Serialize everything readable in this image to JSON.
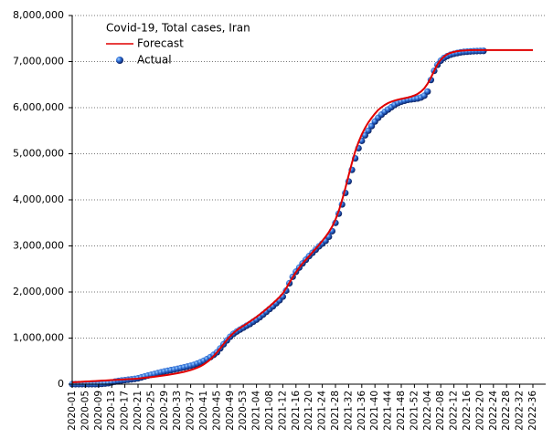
{
  "chart_data": {
    "type": "line",
    "title": "Covid-19, Total cases, Iran",
    "categories": [
      "2020-01",
      null,
      null,
      null,
      "2020-05",
      null,
      null,
      null,
      "2020-09",
      null,
      null,
      null,
      "2020-13",
      null,
      null,
      null,
      "2020-17",
      null,
      null,
      null,
      "2020-21",
      null,
      null,
      null,
      "2020-25",
      null,
      null,
      null,
      "2020-29",
      null,
      null,
      null,
      "2020-33",
      null,
      null,
      null,
      "2020-37",
      null,
      null,
      null,
      "2020-41",
      null,
      null,
      null,
      "2020-45",
      null,
      null,
      null,
      "2020-49",
      null,
      null,
      null,
      "2020-53",
      null,
      null,
      null,
      "2021-04",
      null,
      null,
      null,
      "2021-08",
      null,
      null,
      null,
      "2021-12",
      null,
      null,
      null,
      "2021-16",
      null,
      null,
      null,
      "2021-20",
      null,
      null,
      null,
      "2021-24",
      null,
      null,
      null,
      "2021-28",
      null,
      null,
      null,
      "2021-32",
      null,
      null,
      null,
      "2021-36",
      null,
      null,
      null,
      "2021-40",
      null,
      null,
      null,
      "2021-44",
      null,
      null,
      null,
      "2021-48",
      null,
      null,
      null,
      "2021-52",
      null,
      null,
      null,
      "2022-04",
      null,
      null,
      null,
      "2022-08",
      null,
      null,
      null,
      "2022-12",
      null,
      null,
      null,
      "2022-16",
      null,
      null,
      null,
      "2022-20",
      null,
      null,
      null,
      "2022-24",
      null,
      null,
      null,
      "2022-28",
      null,
      null,
      null,
      "2022-32",
      null,
      null,
      null,
      "2022-36"
    ],
    "series": [
      {
        "name": "Forecast",
        "color": "#e00000",
        "values": [
          40000,
          44000,
          48000,
          52000,
          56000,
          60000,
          64000,
          68000,
          72000,
          76000,
          80000,
          84000,
          88000,
          92000,
          96000,
          100000,
          104000,
          108000,
          112000,
          116000,
          122000,
          130000,
          138000,
          146000,
          154000,
          162000,
          170000,
          180000,
          190000,
          200000,
          212000,
          224000,
          238000,
          252000,
          268000,
          286000,
          306000,
          330000,
          358000,
          390000,
          430000,
          480000,
          540000,
          610000,
          690000,
          780000,
          870000,
          960000,
          1040000,
          1110000,
          1170000,
          1220000,
          1265000,
          1310000,
          1360000,
          1410000,
          1460000,
          1515000,
          1570000,
          1630000,
          1690000,
          1755000,
          1820000,
          1890000,
          1970000,
          2080000,
          2200000,
          2320000,
          2430000,
          2530000,
          2620000,
          2700000,
          2780000,
          2860000,
          2940000,
          3020000,
          3110000,
          3200000,
          3300000,
          3420000,
          3570000,
          3760000,
          3990000,
          4250000,
          4530000,
          4800000,
          5050000,
          5250000,
          5420000,
          5560000,
          5680000,
          5780000,
          5870000,
          5950000,
          6010000,
          6060000,
          6100000,
          6130000,
          6155000,
          6175000,
          6190000,
          6205000,
          6220000,
          6240000,
          6265000,
          6300000,
          6350000,
          6420000,
          6520000,
          6650000,
          6800000,
          6940000,
          7040000,
          7110000,
          7160000,
          7190000,
          7210000,
          7225000,
          7235000,
          7240000,
          7245000,
          7248000,
          7250000,
          7250000,
          7250000,
          7250000,
          7250000,
          7250000,
          7250000,
          7250000,
          7250000,
          7250000,
          7250000,
          7250000,
          7250000,
          7250000,
          7250000,
          7250000,
          7250000,
          7250000,
          7250000
        ]
      },
      {
        "name": "Actual",
        "color": "#1e50c8",
        "values": [
          0,
          0,
          0,
          0,
          0,
          0,
          0,
          0,
          1000,
          7000,
          14000,
          21000,
          38000,
          55000,
          71000,
          80000,
          88000,
          96000,
          104000,
          114000,
          126000,
          146000,
          167000,
          187000,
          204000,
          220000,
          240000,
          259000,
          276000,
          291000,
          304000,
          318000,
          333000,
          350000,
          365000,
          381000,
          400000,
          420000,
          446000,
          476000,
          509000,
          546000,
          588000,
          636000,
          692000,
          776000,
          866000,
          949000,
          1028000,
          1092000,
          1141000,
          1184000,
          1225000,
          1268000,
          1306000,
          1355000,
          1400000,
          1452000,
          1510000,
          1570000,
          1630000,
          1690000,
          1755000,
          1820000,
          1900000,
          2030000,
          2190000,
          2330000,
          2440000,
          2530000,
          2620000,
          2700000,
          2780000,
          2850000,
          2920000,
          2990000,
          3050000,
          3110000,
          3200000,
          3320000,
          3500000,
          3700000,
          3900000,
          4150000,
          4400000,
          4650000,
          4900000,
          5120000,
          5280000,
          5400000,
          5500000,
          5600000,
          5700000,
          5780000,
          5850000,
          5910000,
          5960000,
          6010000,
          6060000,
          6100000,
          6130000,
          6150000,
          6170000,
          6180000,
          6190000,
          6200000,
          6220000,
          6260000,
          6350000,
          6600000,
          6800000,
          6930000,
          7020000,
          7080000,
          7120000,
          7150000,
          7170000,
          7185000,
          7200000,
          7210000,
          7215000,
          7220000,
          7225000,
          7228000,
          7230000,
          7232000,
          null,
          null,
          null,
          null,
          null,
          null,
          null,
          null,
          null,
          null,
          null,
          null,
          null,
          null,
          null
        ]
      }
    ],
    "ylim": [
      0,
      8000000
    ],
    "yticks": [
      0,
      {
        "value": 1000000,
        "label": "1,000,000"
      },
      {
        "value": 2000000,
        "label": "2,000,000"
      },
      {
        "value": 3000000,
        "label": "3,000,000"
      },
      {
        "value": 4000000,
        "label": "4,000,000"
      },
      {
        "value": 5000000,
        "label": "5,000,000"
      },
      {
        "value": 6000000,
        "label": "6,000,000"
      },
      {
        "value": 7000000,
        "label": "7,000,000"
      },
      {
        "value": 8000000,
        "label": "8,000,000"
      }
    ],
    "grid": true
  }
}
